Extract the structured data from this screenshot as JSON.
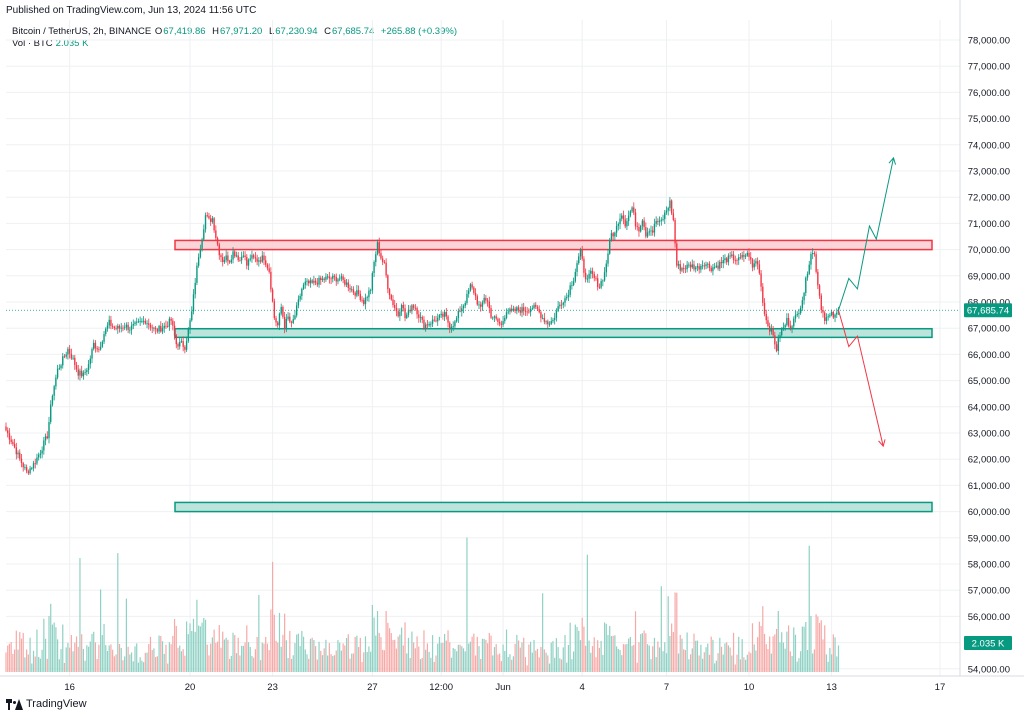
{
  "header": {
    "published": "Published on TradingView.com, Jun 13, 2024 11:56 UTC"
  },
  "legend": {
    "symbol": "Bitcoin / TetherUS, 2h, BINANCE",
    "open_key": "O",
    "open": "67,419.86",
    "high_key": "H",
    "high": "67,971.20",
    "low_key": "L",
    "low": "67,230.94",
    "close_key": "C",
    "close": "67,685.74",
    "change": "+265.88 (+0.39%)",
    "vol_label": "Vol · BTC",
    "vol_value": "2.035 K"
  },
  "footer": {
    "brand": "TradingView"
  },
  "colors": {
    "up": "#089981",
    "down": "#f23645",
    "up_vol": "#8fd1c4",
    "down_vol": "#f7a9a7",
    "resistance_fill": "#f9cdd0",
    "resistance_stroke": "#f23645",
    "support_fill": "#b2dfd6",
    "support_stroke": "#089981",
    "grid": "#eef0f3"
  },
  "chart_data": {
    "type": "candlestick",
    "symbol": "BTCUSDT",
    "interval": "2h",
    "price_axis": {
      "ticks": [
        "54,000.00",
        "55,000.00",
        "56,000.00",
        "57,000.00",
        "58,000.00",
        "59,000.00",
        "60,000.00",
        "61,000.00",
        "62,000.00",
        "63,000.00",
        "64,000.00",
        "65,000.00",
        "66,000.00",
        "67,000.00",
        "68,000.00",
        "69,000.00",
        "70,000.00",
        "71,000.00",
        "72,000.00",
        "73,000.00",
        "74,000.00",
        "75,000.00",
        "76,000.00",
        "77,000.00",
        "78,000.00"
      ],
      "ylim": [
        54000,
        78000
      ],
      "last_price_label": "67,685.74",
      "last_price": 67685.74,
      "volume_label": "2.035 K"
    },
    "x_axis": {
      "ticks": [
        "16",
        "20",
        "23",
        "27",
        "12:00",
        "Jun",
        "4",
        "7",
        "10",
        "13",
        "17"
      ],
      "tick_bars": [
        37,
        107,
        155,
        213,
        253,
        289,
        335,
        384,
        432,
        480,
        543
      ]
    },
    "price_path": [
      [
        0,
        63100
      ],
      [
        4,
        62600
      ],
      [
        8,
        62000
      ],
      [
        12,
        61500
      ],
      [
        16,
        61800
      ],
      [
        20,
        62300
      ],
      [
        24,
        62900
      ],
      [
        27,
        64500
      ],
      [
        30,
        65400
      ],
      [
        33,
        65800
      ],
      [
        36,
        66200
      ],
      [
        39,
        65800
      ],
      [
        42,
        65300
      ],
      [
        45,
        65200
      ],
      [
        48,
        65600
      ],
      [
        51,
        66400
      ],
      [
        54,
        66200
      ],
      [
        57,
        66800
      ],
      [
        60,
        67200
      ],
      [
        63,
        67000
      ],
      [
        66,
        67000
      ],
      [
        69,
        67100
      ],
      [
        72,
        67000
      ],
      [
        75,
        67100
      ],
      [
        78,
        67200
      ],
      [
        81,
        67300
      ],
      [
        84,
        67100
      ],
      [
        87,
        66900
      ],
      [
        90,
        67000
      ],
      [
        93,
        67100
      ],
      [
        96,
        67300
      ],
      [
        99,
        66400
      ],
      [
        102,
        66400
      ],
      [
        104,
        66300
      ],
      [
        106,
        66900
      ],
      [
        108,
        67600
      ],
      [
        110,
        68800
      ],
      [
        112,
        69800
      ],
      [
        114,
        70500
      ],
      [
        116,
        71300
      ],
      [
        118,
        71100
      ],
      [
        120,
        71200
      ],
      [
        122,
        70500
      ],
      [
        124,
        69900
      ],
      [
        126,
        69600
      ],
      [
        128,
        69700
      ],
      [
        130,
        69600
      ],
      [
        132,
        69900
      ],
      [
        134,
        69800
      ],
      [
        136,
        69600
      ],
      [
        138,
        69900
      ],
      [
        140,
        69400
      ],
      [
        142,
        69700
      ],
      [
        146,
        69600
      ],
      [
        150,
        69700
      ],
      [
        153,
        69200
      ],
      [
        156,
        67400
      ],
      [
        158,
        67100
      ],
      [
        160,
        67800
      ],
      [
        162,
        67100
      ],
      [
        164,
        67400
      ],
      [
        166,
        67100
      ],
      [
        168,
        67500
      ],
      [
        170,
        68000
      ],
      [
        172,
        68500
      ],
      [
        174,
        68700
      ],
      [
        178,
        68700
      ],
      [
        182,
        68800
      ],
      [
        186,
        68900
      ],
      [
        190,
        68900
      ],
      [
        194,
        68900
      ],
      [
        198,
        68700
      ],
      [
        202,
        68400
      ],
      [
        205,
        68300
      ],
      [
        208,
        68000
      ],
      [
        212,
        68500
      ],
      [
        214,
        69500
      ],
      [
        216,
        70200
      ],
      [
        218,
        69700
      ],
      [
        220,
        69400
      ],
      [
        222,
        68600
      ],
      [
        224,
        68100
      ],
      [
        226,
        67800
      ],
      [
        228,
        67500
      ],
      [
        230,
        68000
      ],
      [
        232,
        67400
      ],
      [
        234,
        67600
      ],
      [
        236,
        67900
      ],
      [
        238,
        67800
      ],
      [
        240,
        67500
      ],
      [
        243,
        67100
      ],
      [
        246,
        67200
      ],
      [
        249,
        67300
      ],
      [
        252,
        67400
      ],
      [
        255,
        67500
      ],
      [
        258,
        67100
      ],
      [
        261,
        67200
      ],
      [
        264,
        67700
      ],
      [
        266,
        67900
      ],
      [
        268,
        68200
      ],
      [
        270,
        68600
      ],
      [
        272,
        68400
      ],
      [
        274,
        68000
      ],
      [
        276,
        67700
      ],
      [
        278,
        68200
      ],
      [
        280,
        68000
      ],
      [
        282,
        67500
      ],
      [
        285,
        67300
      ],
      [
        288,
        67100
      ],
      [
        291,
        67700
      ],
      [
        294,
        67600
      ],
      [
        297,
        67700
      ],
      [
        300,
        67700
      ],
      [
        303,
        67700
      ],
      [
        306,
        67800
      ],
      [
        309,
        67700
      ],
      [
        312,
        67400
      ],
      [
        315,
        67200
      ],
      [
        318,
        67300
      ],
      [
        321,
        67800
      ],
      [
        324,
        68100
      ],
      [
        326,
        68200
      ],
      [
        328,
        68600
      ],
      [
        330,
        68900
      ],
      [
        332,
        69500
      ],
      [
        334,
        69900
      ],
      [
        336,
        69200
      ],
      [
        338,
        68800
      ],
      [
        340,
        69100
      ],
      [
        342,
        68900
      ],
      [
        345,
        68600
      ],
      [
        348,
        69100
      ],
      [
        350,
        69900
      ],
      [
        352,
        70600
      ],
      [
        354,
        70600
      ],
      [
        356,
        71100
      ],
      [
        358,
        71400
      ],
      [
        360,
        71000
      ],
      [
        362,
        71300
      ],
      [
        364,
        71600
      ],
      [
        366,
        71000
      ],
      [
        368,
        70800
      ],
      [
        370,
        71200
      ],
      [
        372,
        70600
      ],
      [
        374,
        70800
      ],
      [
        376,
        70700
      ],
      [
        378,
        71100
      ],
      [
        380,
        71000
      ],
      [
        382,
        71200
      ],
      [
        384,
        71500
      ],
      [
        386,
        71800
      ],
      [
        388,
        71100
      ],
      [
        390,
        69400
      ],
      [
        392,
        69300
      ],
      [
        394,
        69300
      ],
      [
        398,
        69400
      ],
      [
        402,
        69300
      ],
      [
        406,
        69500
      ],
      [
        410,
        69300
      ],
      [
        414,
        69400
      ],
      [
        418,
        69600
      ],
      [
        422,
        69700
      ],
      [
        426,
        69600
      ],
      [
        430,
        69800
      ],
      [
        432,
        69800
      ],
      [
        434,
        69300
      ],
      [
        436,
        69600
      ],
      [
        438,
        69200
      ],
      [
        440,
        68000
      ],
      [
        442,
        67300
      ],
      [
        444,
        67000
      ],
      [
        446,
        66700
      ],
      [
        448,
        66200
      ],
      [
        450,
        66800
      ],
      [
        452,
        67000
      ],
      [
        454,
        67300
      ],
      [
        456,
        67100
      ],
      [
        458,
        67300
      ],
      [
        460,
        67500
      ],
      [
        462,
        67900
      ],
      [
        464,
        68400
      ],
      [
        466,
        69200
      ],
      [
        468,
        69900
      ],
      [
        470,
        69800
      ],
      [
        472,
        68700
      ],
      [
        474,
        67800
      ],
      [
        476,
        67400
      ],
      [
        478,
        67400
      ],
      [
        480,
        67500
      ],
      [
        482,
        67420
      ],
      [
        484,
        67685
      ]
    ],
    "zones": [
      {
        "kind": "resistance",
        "low": 70000,
        "high": 70350
      },
      {
        "kind": "support",
        "low": 66650,
        "high": 66980
      },
      {
        "kind": "support",
        "low": 60000,
        "high": 60350
      }
    ],
    "scenarios": [
      {
        "direction": "bullish",
        "path": [
          [
            484,
            67685
          ],
          [
            490,
            68900
          ],
          [
            495,
            68500
          ],
          [
            502,
            70900
          ],
          [
            506,
            70400
          ],
          [
            516,
            73500
          ]
        ]
      },
      {
        "direction": "bearish",
        "path": [
          [
            484,
            67685
          ],
          [
            490,
            66300
          ],
          [
            495,
            66700
          ],
          [
            510,
            62500
          ]
        ]
      }
    ]
  }
}
